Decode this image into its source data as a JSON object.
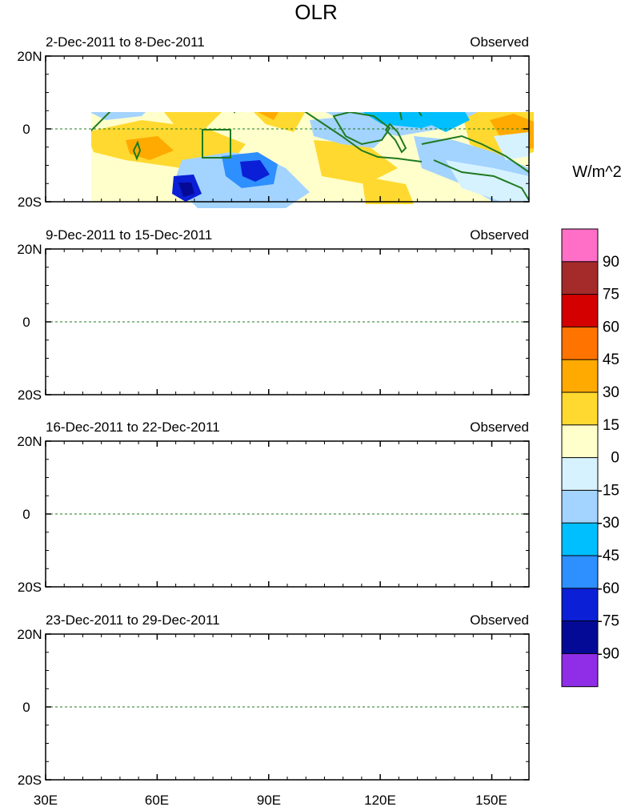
{
  "title": "OLR",
  "units_label": "W/m^2",
  "panel_status": "Observed",
  "panels": [
    {
      "date_range": "2-Dec-2011 to 8-Dec-2011"
    },
    {
      "date_range": "9-Dec-2011 to 15-Dec-2011"
    },
    {
      "date_range": "16-Dec-2011 to 22-Dec-2011"
    },
    {
      "date_range": "23-Dec-2011 to 29-Dec-2011"
    }
  ],
  "lat_labels": {
    "north": "20N",
    "equator": "0",
    "south": "20S"
  },
  "lon_labels": [
    "30E",
    "60E",
    "90E",
    "120E",
    "150E"
  ],
  "colorbar": {
    "tick_labels": [
      "90",
      "75",
      "60",
      "45",
      "30",
      "15",
      "0",
      "-15",
      "-30",
      "-45",
      "-60",
      "-75",
      "-90"
    ],
    "colors": [
      "#ff6ec7",
      "#a52a2a",
      "#d40000",
      "#ff7300",
      "#ffaa00",
      "#ffd92f",
      "#ffffcc",
      "#d6f2ff",
      "#a3d3ff",
      "#00bfff",
      "#2e8fff",
      "#0a1fd6",
      "#050a96",
      "#8f2ee6"
    ]
  },
  "colors": {
    "coastline": "#1f7a1f",
    "equator_line": "#1f7a1f",
    "background_anomaly": "#ffffcc"
  }
}
